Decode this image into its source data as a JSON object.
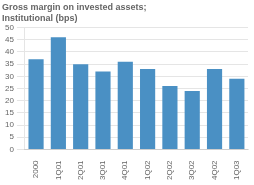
{
  "chart_data": {
    "type": "bar",
    "title": "Gross margin on invested assets;\nInstitutional (bps)",
    "categories": [
      "2000",
      "1Q01",
      "2Q01",
      "3Q01",
      "4Q01",
      "1Q02",
      "2Q02",
      "3Q02",
      "4Q02",
      "1Q03"
    ],
    "values": [
      37,
      46,
      35,
      32,
      36,
      33,
      26,
      24,
      33,
      29
    ],
    "color": "#4a90c4",
    "ylim": [
      0,
      50
    ],
    "yticks": [
      0,
      5,
      10,
      15,
      20,
      25,
      30,
      35,
      40,
      45,
      50
    ],
    "grid": true
  }
}
